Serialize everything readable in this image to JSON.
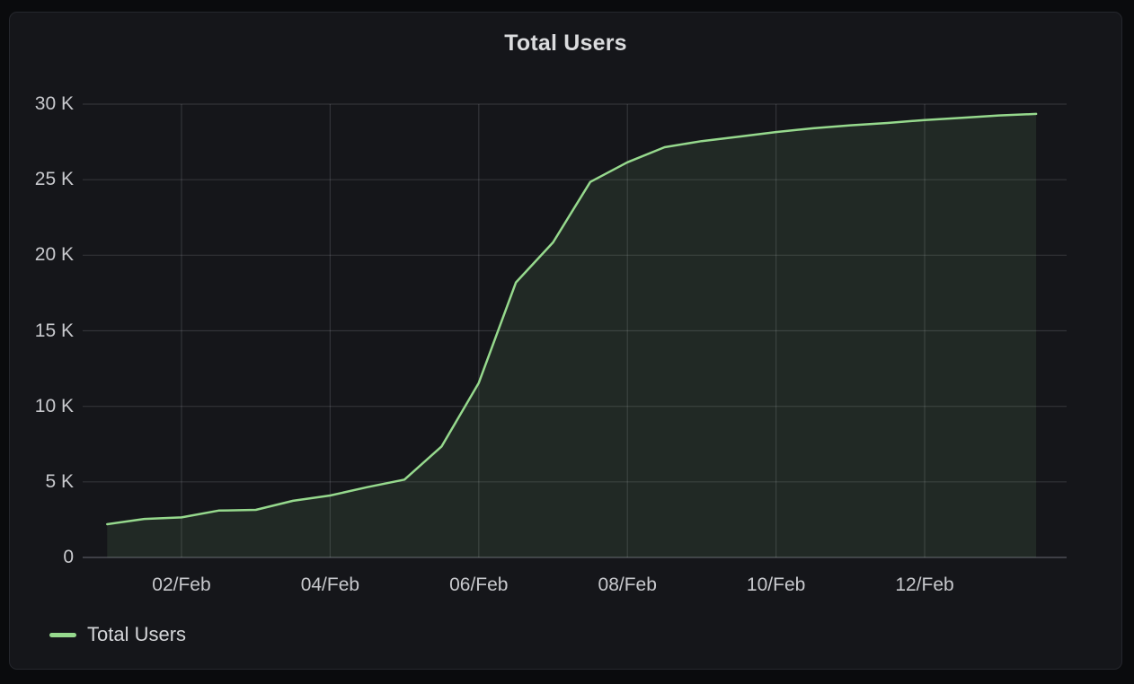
{
  "panel": {
    "title": "Total Users"
  },
  "colors": {
    "page_background": "#0a0b0d",
    "panel_background": "#15161a",
    "panel_border": "#25272d",
    "grid": "rgba(204,204,220,0.16)",
    "axis_baseline": "rgba(204,204,220,0.30)",
    "tick_text": "#c8c9cd",
    "title_text": "#dbdcde",
    "legend_text": "#d4d5d8",
    "series_green": "#96D98D"
  },
  "legend": {
    "items": [
      {
        "label": "Total Users",
        "color": "#96D98D"
      }
    ]
  },
  "chart_data": {
    "type": "area",
    "title": "Total Users",
    "grid": true,
    "legend_position": "bottom-left",
    "xlabel": "",
    "ylabel": "",
    "ylim": [
      0,
      30000
    ],
    "x_range_days": [
      -0.33,
      12.91
    ],
    "x": [
      "01/Feb 00:00",
      "01/Feb 12:00",
      "02/Feb 00:00",
      "02/Feb 12:00",
      "03/Feb 00:00",
      "03/Feb 12:00",
      "04/Feb 00:00",
      "04/Feb 12:00",
      "05/Feb 00:00",
      "05/Feb 12:00",
      "06/Feb 00:00",
      "06/Feb 12:00",
      "07/Feb 00:00",
      "07/Feb 12:00",
      "08/Feb 00:00",
      "08/Feb 12:00",
      "09/Feb 00:00",
      "09/Feb 12:00",
      "10/Feb 00:00",
      "10/Feb 12:00",
      "11/Feb 00:00",
      "11/Feb 12:00",
      "12/Feb 00:00",
      "12/Feb 12:00",
      "13/Feb 00:00",
      "13/Feb 12:00"
    ],
    "series": [
      {
        "name": "Total Users",
        "color": "#96D98D",
        "fill_opacity": 0.1,
        "values": [
          2200,
          2550,
          2650,
          3100,
          3150,
          3750,
          4100,
          4650,
          5150,
          7350,
          11550,
          18200,
          20850,
          24850,
          26150,
          27150,
          27550,
          27850,
          28150,
          28400,
          28600,
          28750,
          28950,
          29100,
          29250,
          29350
        ]
      }
    ],
    "y_ticks": {
      "values": [
        0,
        5000,
        10000,
        15000,
        20000,
        25000,
        30000
      ],
      "labels": [
        "0",
        "5 K",
        "10 K",
        "15 K",
        "20 K",
        "25 K",
        "30 K"
      ]
    },
    "x_ticks": {
      "day_offsets": [
        1,
        3,
        5,
        7,
        9,
        11
      ],
      "labels": [
        "02/Feb",
        "04/Feb",
        "06/Feb",
        "08/Feb",
        "10/Feb",
        "12/Feb"
      ]
    }
  }
}
